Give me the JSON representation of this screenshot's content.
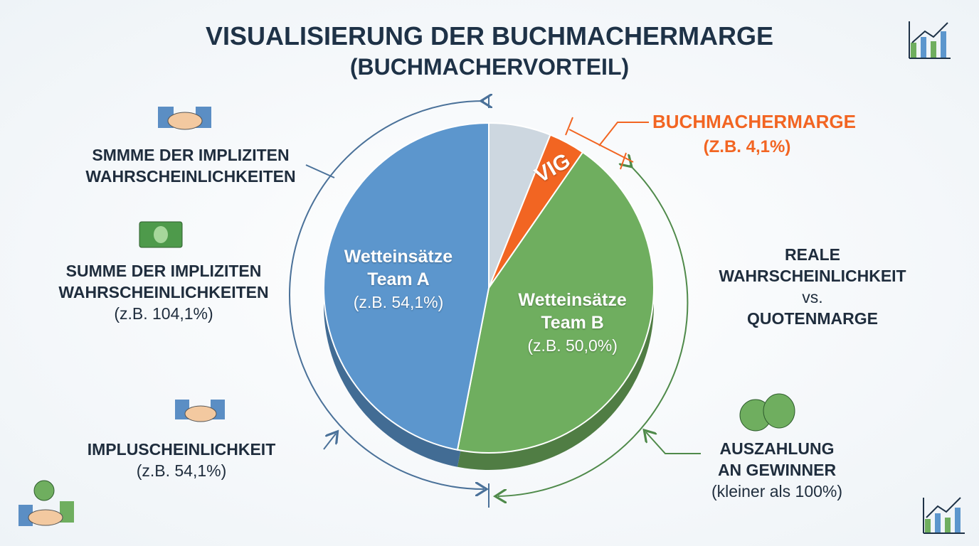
{
  "chart_data": {
    "type": "pie",
    "title": "VISUALISIERUNG DER BUCHMACHERMARGE",
    "subtitle": "(BUCHMACHERVORTEIL)",
    "categories": [
      null,
      "VIG",
      "Wetteinsätze Team B",
      "Wetteinsätze Team A"
    ],
    "values": [
      7,
      4.1,
      50.0,
      54.1
    ],
    "value_labels": [
      null,
      "(Z.B. 4,1%)",
      "(z.B. 50,0%)",
      "(z.B. 54,1%)"
    ],
    "colors": [
      "#cdd7e0",
      "#f26522",
      "#6fae5f",
      "#5c96cd"
    ],
    "annotations": [
      {
        "lines": [
          "BUCHMACHERMARGE"
        ]
      },
      {
        "lines": [
          "SMMME DER IMPLIZITEN",
          "WAHRSCHEINLICHKEITEN"
        ]
      },
      {
        "lines": [
          "SUMME DER IMPLIZITEN",
          "WAHRSCHEINLICHKEITEN",
          "(z.B. 104,1%)"
        ]
      },
      {
        "lines": [
          "IMPLUSCHEINLICHKEIT",
          "(z.B. 54,1%)"
        ]
      },
      {
        "lines": [
          "REALE",
          "WAHRSCHEINLICHKEIT",
          "vs.",
          "QUOTENMARGE"
        ]
      },
      {
        "lines": [
          "AUSZAHLUNG",
          "AN GEWINNER",
          "(kleiner als 100%)"
        ]
      }
    ]
  }
}
